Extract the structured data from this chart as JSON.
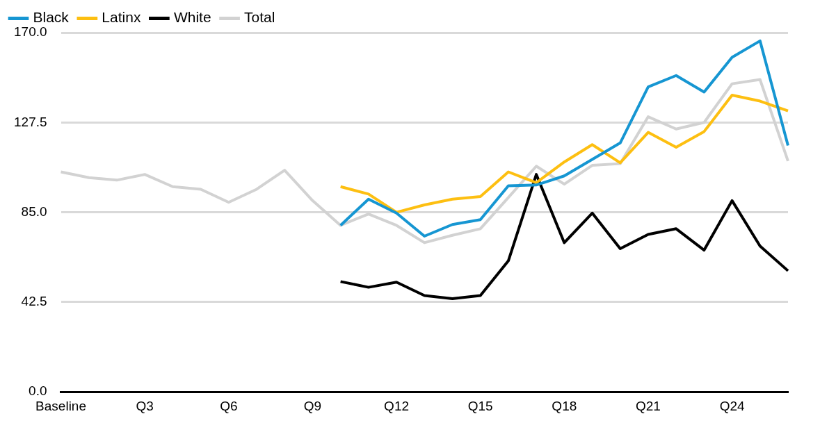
{
  "chart_data": {
    "type": "line",
    "categories": [
      "Baseline",
      null,
      null,
      "Q3",
      null,
      null,
      "Q6",
      null,
      null,
      "Q9",
      null,
      null,
      "Q12",
      null,
      null,
      "Q15",
      null,
      null,
      "Q18",
      null,
      null,
      "Q21",
      null,
      null,
      "Q24",
      null,
      null
    ],
    "series": [
      {
        "name": "Black",
        "color": "#1696d2",
        "values": [
          null,
          null,
          null,
          null,
          null,
          null,
          null,
          null,
          null,
          null,
          78.8,
          91.2,
          84.6,
          73.7,
          79.2,
          81.5,
          97.5,
          97.9,
          102.2,
          110,
          117.8,
          144.3,
          149.7,
          141.9,
          158.3,
          166.1,
          116.6
        ]
      },
      {
        "name": "Latinx",
        "color": "#fdbf11",
        "values": [
          null,
          null,
          null,
          null,
          null,
          null,
          null,
          null,
          null,
          null,
          97.1,
          93.6,
          85.0,
          88.5,
          91.2,
          92.4,
          104.1,
          99.0,
          108.8,
          117.0,
          108.4,
          122.8,
          115.8,
          123.2,
          140.4,
          137.6,
          133.0
        ]
      },
      {
        "name": "White",
        "color": "#000000",
        "values": [
          null,
          null,
          null,
          null,
          null,
          null,
          null,
          null,
          null,
          null,
          52.2,
          49.5,
          51.9,
          45.6,
          44.1,
          45.6,
          62.0,
          102.9,
          70.6,
          84.6,
          67.8,
          74.5,
          77.2,
          67.1,
          90.5,
          69.0,
          57.3
        ]
      },
      {
        "name": "Total",
        "color": "#d2d2d2",
        "values": [
          104.1,
          101.4,
          100.2,
          102.9,
          97.1,
          95.9,
          89.7,
          95.9,
          104.9,
          90.5,
          78.8,
          84.2,
          78.8,
          70.6,
          74.1,
          77.2,
          92.0,
          106.8,
          98.3,
          107.2,
          108.0,
          130.2,
          124.4,
          127.5,
          145.8,
          147.8,
          109.2
        ]
      }
    ],
    "ylim": [
      0,
      170
    ],
    "yticks": [
      {
        "value": 0,
        "label": "0.0"
      },
      {
        "value": 42.5,
        "label": "42.5"
      },
      {
        "value": 85,
        "label": "85.0"
      },
      {
        "value": 127.5,
        "label": "127.5"
      },
      {
        "value": 170,
        "label": "170.0"
      }
    ],
    "grid": "y",
    "legend": "top left",
    "marker": "none",
    "line_style": "solid"
  }
}
